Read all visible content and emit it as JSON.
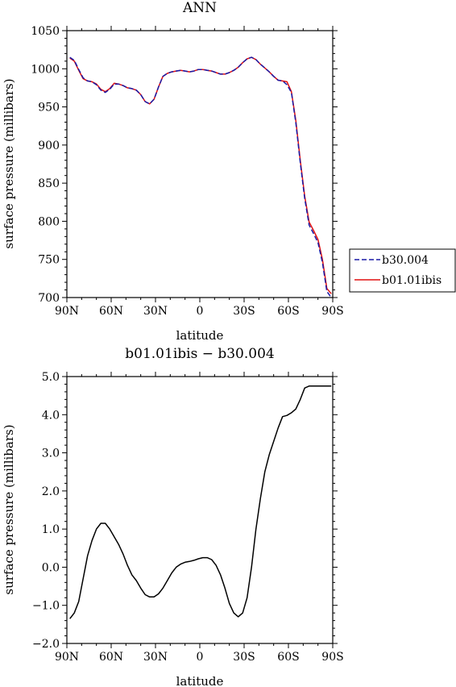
{
  "chart_data": [
    {
      "type": "line",
      "title": "ANN",
      "xlabel": "latitude",
      "ylabel": "surface pressure (millibars)",
      "xlim": [
        90,
        -90
      ],
      "ylim": [
        700,
        1050
      ],
      "xticks": [
        90,
        60,
        30,
        0,
        -30,
        -60,
        -90
      ],
      "xtick_labels": [
        "90N",
        "60N",
        "30N",
        "0",
        "30S",
        "60S",
        "90S"
      ],
      "yticks": [
        700,
        750,
        800,
        850,
        900,
        950,
        1000,
        1050
      ],
      "ytick_labels": [
        "700",
        "750",
        "800",
        "850",
        "900",
        "950",
        "1000",
        "1050"
      ],
      "legend": "outside-right",
      "grid": false,
      "series": [
        {
          "name": "b30.004",
          "color": "#1a1aa6",
          "dash": "dashed",
          "x": [
            88,
            85,
            82,
            79,
            76,
            73,
            70,
            67,
            64,
            61,
            58,
            55,
            52,
            49,
            46,
            43,
            40,
            37,
            34,
            31,
            28,
            25,
            22,
            19,
            16,
            13,
            10,
            7,
            4,
            1,
            -2,
            -5,
            -8,
            -11,
            -14,
            -17,
            -20,
            -23,
            -26,
            -29,
            -32,
            -35,
            -38,
            -41,
            -44,
            -47,
            -50,
            -53,
            -56,
            -59,
            -62,
            -65,
            -68,
            -71,
            -74,
            -77,
            -80,
            -83,
            -86,
            -89
          ],
          "y": [
            1015,
            1011,
            999,
            988,
            984,
            983,
            979,
            972,
            969,
            973,
            980,
            980,
            978,
            975,
            974,
            972,
            966,
            957,
            954,
            960,
            976,
            990,
            994,
            996,
            997,
            998,
            997,
            996,
            997,
            999,
            999,
            998,
            997,
            995,
            993,
            993,
            995,
            998,
            1002,
            1008,
            1013,
            1015,
            1012,
            1006,
            1001,
            996,
            990,
            985,
            984,
            979,
            969,
            929,
            877,
            830,
            795,
            784,
            772,
            746,
            708,
            700
          ],
          "note": ""
        },
        {
          "name": "b01.01ibis",
          "color": "#e01010",
          "dash": "solid",
          "x": [
            88,
            85,
            82,
            79,
            76,
            73,
            70,
            67,
            64,
            61,
            58,
            55,
            52,
            49,
            46,
            43,
            40,
            37,
            34,
            31,
            28,
            25,
            22,
            19,
            16,
            13,
            10,
            7,
            4,
            1,
            -2,
            -5,
            -8,
            -11,
            -14,
            -17,
            -20,
            -23,
            -26,
            -29,
            -32,
            -35,
            -38,
            -41,
            -44,
            -47,
            -50,
            -53,
            -56,
            -59,
            -62,
            -65,
            -68,
            -71,
            -74,
            -77,
            -80,
            -83,
            -86,
            -89
          ],
          "y": [
            1014,
            1010,
            998,
            987,
            984,
            983,
            980,
            973,
            970,
            974,
            981,
            980,
            978,
            975,
            974,
            972,
            966,
            957,
            954,
            960,
            976,
            990,
            994,
            996,
            997,
            998,
            997,
            996,
            997,
            999,
            999,
            998,
            997,
            995,
            993,
            993,
            995,
            998,
            1002,
            1008,
            1013,
            1015,
            1012,
            1006,
            1001,
            996,
            990,
            985,
            984,
            983,
            970,
            932,
            880,
            833,
            799,
            788,
            776,
            750,
            712,
            705
          ]
        }
      ]
    },
    {
      "type": "line",
      "title": "b01.01ibis − b30.004",
      "xlabel": "latitude",
      "ylabel": "surface pressure (millibars)",
      "xlim": [
        90,
        -90
      ],
      "ylim": [
        -2.0,
        5.0
      ],
      "xticks": [
        90,
        60,
        30,
        0,
        -30,
        -60,
        -90
      ],
      "xtick_labels": [
        "90N",
        "60N",
        "30N",
        "0",
        "30S",
        "60S",
        "90S"
      ],
      "yticks": [
        -2,
        -1,
        0,
        1,
        2,
        3,
        4,
        5
      ],
      "ytick_labels": [
        "−2.0",
        "−1.0",
        "0.0",
        "1.0",
        "2.0",
        "3.0",
        "4.0",
        "5.0"
      ],
      "grid": false,
      "series": [
        {
          "color": "#000000",
          "x": [
            88,
            85,
            82,
            79,
            76,
            73,
            70,
            67,
            64,
            61,
            58,
            55,
            52,
            49,
            46,
            43,
            40,
            37,
            34,
            31,
            28,
            25,
            22,
            19,
            16,
            13,
            10,
            7,
            4,
            1,
            -2,
            -5,
            -8,
            -11,
            -14,
            -17,
            -20,
            -23,
            -26,
            -29,
            -32,
            -35,
            -38,
            -41,
            -44,
            -47,
            -50,
            -53,
            -56,
            -59,
            -62,
            -65,
            -68,
            -71,
            -74,
            -77,
            -80,
            -83,
            -86,
            -89
          ],
          "y": [
            -1.35,
            -1.2,
            -0.9,
            -0.3,
            0.3,
            0.7,
            1.0,
            1.15,
            1.15,
            1.0,
            0.8,
            0.6,
            0.35,
            0.05,
            -0.2,
            -0.35,
            -0.55,
            -0.72,
            -0.78,
            -0.78,
            -0.7,
            -0.55,
            -0.35,
            -0.15,
            0.0,
            0.08,
            0.13,
            0.15,
            0.18,
            0.22,
            0.25,
            0.25,
            0.2,
            0.05,
            -0.2,
            -0.55,
            -0.95,
            -1.2,
            -1.3,
            -1.2,
            -0.8,
            0.0,
            1.0,
            1.8,
            2.5,
            2.95,
            3.3,
            3.65,
            3.95,
            3.98,
            4.05,
            4.15,
            4.4,
            4.7,
            4.75,
            4.75,
            4.75,
            4.75,
            4.75,
            4.75
          ]
        }
      ]
    }
  ]
}
